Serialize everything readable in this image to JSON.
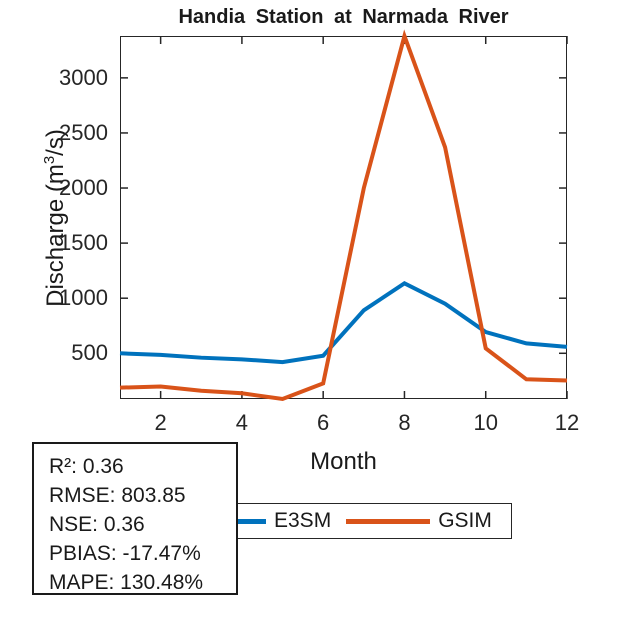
{
  "title": "Handia Station at Narmada River",
  "ylabel_parts": {
    "pre": "Discharge (m",
    "sup": "3",
    "post": "/s)"
  },
  "stats": {
    "lines": [
      "R²: 0.36",
      "RMSE: 803.85",
      "NSE: 0.36",
      "PBIAS: -17.47%",
      "MAPE: 130.48%"
    ]
  },
  "legend": {
    "items": [
      {
        "label": "E3SM",
        "color": "#0072BD"
      },
      {
        "label": "GSIM",
        "color": "#D95319"
      }
    ]
  },
  "chart_data": {
    "type": "line",
    "title": "Handia Station at Narmada River",
    "xlabel": "Month",
    "ylabel": "Discharge (m³/s)",
    "x": [
      1,
      2,
      3,
      4,
      5,
      6,
      7,
      8,
      9,
      10,
      11,
      12
    ],
    "series": [
      {
        "name": "E3SM",
        "color": "#0072BD",
        "values": [
          500,
          485,
          460,
          445,
          420,
          478,
          890,
          1135,
          950,
          693,
          590,
          558
        ]
      },
      {
        "name": "GSIM",
        "color": "#D95319",
        "values": [
          188,
          198,
          160,
          137,
          85,
          227,
          2000,
          3380,
          2370,
          545,
          264,
          253
        ]
      }
    ],
    "xlim": [
      1,
      12
    ],
    "ylim": [
      85,
      3380
    ],
    "xticks": [
      2,
      4,
      6,
      8,
      10,
      12
    ],
    "yticks": [
      500,
      1000,
      1500,
      2000,
      2500,
      3000
    ],
    "grid": false,
    "legend_position": "below-plot",
    "line_width": 4,
    "axis_color": "#262626"
  }
}
